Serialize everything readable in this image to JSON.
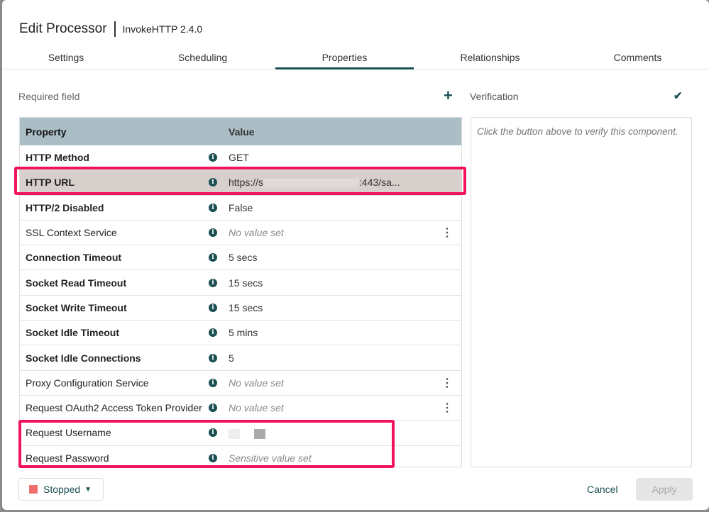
{
  "header": {
    "title": "Edit Processor",
    "subtitle": "InvokeHTTP 2.4.0"
  },
  "tabs": [
    {
      "label": "Settings",
      "width": 180
    },
    {
      "label": "Scheduling",
      "width": 205
    },
    {
      "label": "Properties",
      "width": 195
    },
    {
      "label": "Relationships",
      "width": 215
    },
    {
      "label": "Comments",
      "width": 201
    }
  ],
  "required_label": "Required field",
  "table": {
    "col_property": "Property",
    "col_value": "Value",
    "rows": [
      {
        "name": "HTTP Method",
        "value": "GET",
        "required": true
      },
      {
        "name": "HTTP URL",
        "value_prefix": "https://s",
        ",": "",
        "value_suffix": ":443/sa...",
        "required": true,
        "highlight": true
      },
      {
        "name": "HTTP/2 Disabled",
        "value": "False",
        "required": true
      },
      {
        "name": "SSL Context Service",
        "value": "No value set",
        "empty": true,
        "menu": true
      },
      {
        "name": "Connection Timeout",
        "value": "5 secs",
        "required": true
      },
      {
        "name": "Socket Read Timeout",
        "value": "15 secs",
        "required": true
      },
      {
        "name": "Socket Write Timeout",
        "value": "15 secs",
        "required": true
      },
      {
        "name": "Socket Idle Timeout",
        "value": "5 mins",
        "required": true
      },
      {
        "name": "Socket Idle Connections",
        "value": "5",
        "required": true
      },
      {
        "name": "Proxy Configuration Service",
        "value": "No value set",
        "empty": true,
        "menu": true
      },
      {
        "name": "Request OAuth2 Access Token Provider",
        "value": "No value set",
        "empty": true,
        "menu": true
      },
      {
        "name": "Request Username",
        "value": "",
        "redacted": true
      },
      {
        "name": "Request Password",
        "value": "Sensitive value set",
        "empty": true
      }
    ]
  },
  "verification": {
    "title": "Verification",
    "hint": "Click the button above to verify this component."
  },
  "footer": {
    "status": "Stopped",
    "cancel": "Cancel",
    "apply": "Apply"
  },
  "colors": {
    "accent": "#1c4f52",
    "highlight_box": "#f0145a",
    "stopped": "#ef6f6f"
  }
}
